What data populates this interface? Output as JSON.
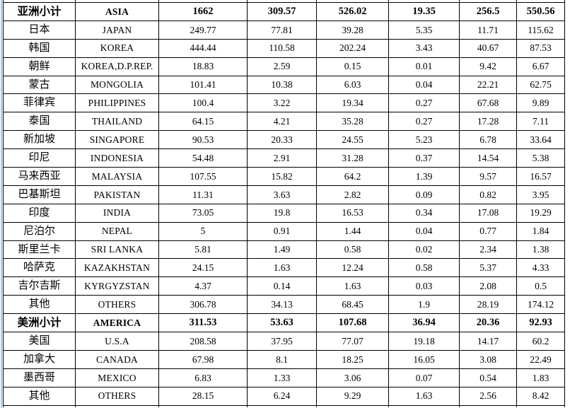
{
  "page": {
    "background_color": "#ffffff",
    "border_color": "#000000",
    "text_color": "#000000",
    "margin_line_color": "#aec6e8"
  },
  "table": {
    "rows": [
      {
        "cn": "亚洲小计",
        "en": "ASIA",
        "values": [
          "1662",
          "309.57",
          "526.02",
          "19.35",
          "256.5",
          "550.56"
        ],
        "bold": true
      },
      {
        "cn": "日本",
        "en": "JAPAN",
        "values": [
          "249.77",
          "77.81",
          "39.28",
          "5.35",
          "11.71",
          "115.62"
        ],
        "bold": false
      },
      {
        "cn": "韩国",
        "en": "KOREA",
        "values": [
          "444.44",
          "110.58",
          "202.24",
          "3.43",
          "40.67",
          "87.53"
        ],
        "bold": false
      },
      {
        "cn": "朝鲜",
        "en": "KOREA,D.P.REP.",
        "values": [
          "18.83",
          "2.59",
          "0.15",
          "0.01",
          "9.42",
          "6.67"
        ],
        "bold": false
      },
      {
        "cn": "蒙古",
        "en": "MONGOLIA",
        "values": [
          "101.41",
          "10.38",
          "6.03",
          "0.04",
          "22.21",
          "62.75"
        ],
        "bold": false
      },
      {
        "cn": "菲律宾",
        "en": "PHILIPPINES",
        "values": [
          "100.4",
          "3.22",
          "19.34",
          "0.27",
          "67.68",
          "9.89"
        ],
        "bold": false
      },
      {
        "cn": "泰国",
        "en": "THAILAND",
        "values": [
          "64.15",
          "4.21",
          "35.28",
          "0.27",
          "17.28",
          "7.11"
        ],
        "bold": false
      },
      {
        "cn": "新加坡",
        "en": "SINGAPORE",
        "values": [
          "90.53",
          "20.33",
          "24.55",
          "5.23",
          "6.78",
          "33.64"
        ],
        "bold": false
      },
      {
        "cn": "印尼",
        "en": "INDONESIA",
        "values": [
          "54.48",
          "2.91",
          "31.28",
          "0.37",
          "14.54",
          "5.38"
        ],
        "bold": false
      },
      {
        "cn": "马来西亚",
        "en": "MALAYSIA",
        "values": [
          "107.55",
          "15.82",
          "64.2",
          "1.39",
          "9.57",
          "16.57"
        ],
        "bold": false
      },
      {
        "cn": "巴基斯坦",
        "en": "PAKISTAN",
        "values": [
          "11.31",
          "3.63",
          "2.82",
          "0.09",
          "0.82",
          "3.95"
        ],
        "bold": false
      },
      {
        "cn": "印度",
        "en": "INDIA",
        "values": [
          "73.05",
          "19.8",
          "16.53",
          "0.34",
          "17.08",
          "19.29"
        ],
        "bold": false
      },
      {
        "cn": "尼泊尔",
        "en": "NEPAL",
        "values": [
          "5",
          "0.91",
          "1.44",
          "0.04",
          "0.77",
          "1.84"
        ],
        "bold": false
      },
      {
        "cn": "斯里兰卡",
        "en": "SRI LANKA",
        "values": [
          "5.81",
          "1.49",
          "0.58",
          "0.02",
          "2.34",
          "1.38"
        ],
        "bold": false
      },
      {
        "cn": "哈萨克",
        "en": "KAZAKHSTAN",
        "values": [
          "24.15",
          "1.63",
          "12.24",
          "0.58",
          "5.37",
          "4.33"
        ],
        "bold": false
      },
      {
        "cn": "吉尔吉斯",
        "en": "KYRGYZSTAN",
        "values": [
          "4.37",
          "0.14",
          "1.63",
          "0.03",
          "2.08",
          "0.5"
        ],
        "bold": false
      },
      {
        "cn": "其他",
        "en": "OTHERS",
        "values": [
          "306.78",
          "34.13",
          "68.45",
          "1.9",
          "28.19",
          "174.12"
        ],
        "bold": false
      },
      {
        "cn": "美洲小计",
        "en": "AMERICA",
        "values": [
          "311.53",
          "53.63",
          "107.68",
          "36.94",
          "20.36",
          "92.93"
        ],
        "bold": true
      },
      {
        "cn": "美国",
        "en": "U.S.A",
        "values": [
          "208.58",
          "37.95",
          "77.07",
          "19.18",
          "14.17",
          "60.2"
        ],
        "bold": false
      },
      {
        "cn": "加拿大",
        "en": "CANADA",
        "values": [
          "67.98",
          "8.1",
          "18.25",
          "16.05",
          "3.08",
          "22.49"
        ],
        "bold": false
      },
      {
        "cn": "墨西哥",
        "en": "MEXICO",
        "values": [
          "6.83",
          "1.33",
          "3.06",
          "0.07",
          "0.54",
          "1.83"
        ],
        "bold": false
      },
      {
        "cn": "其他",
        "en": "OTHERS",
        "values": [
          "28.15",
          "6.24",
          "9.29",
          "1.63",
          "2.56",
          "8.42"
        ],
        "bold": false
      }
    ]
  }
}
